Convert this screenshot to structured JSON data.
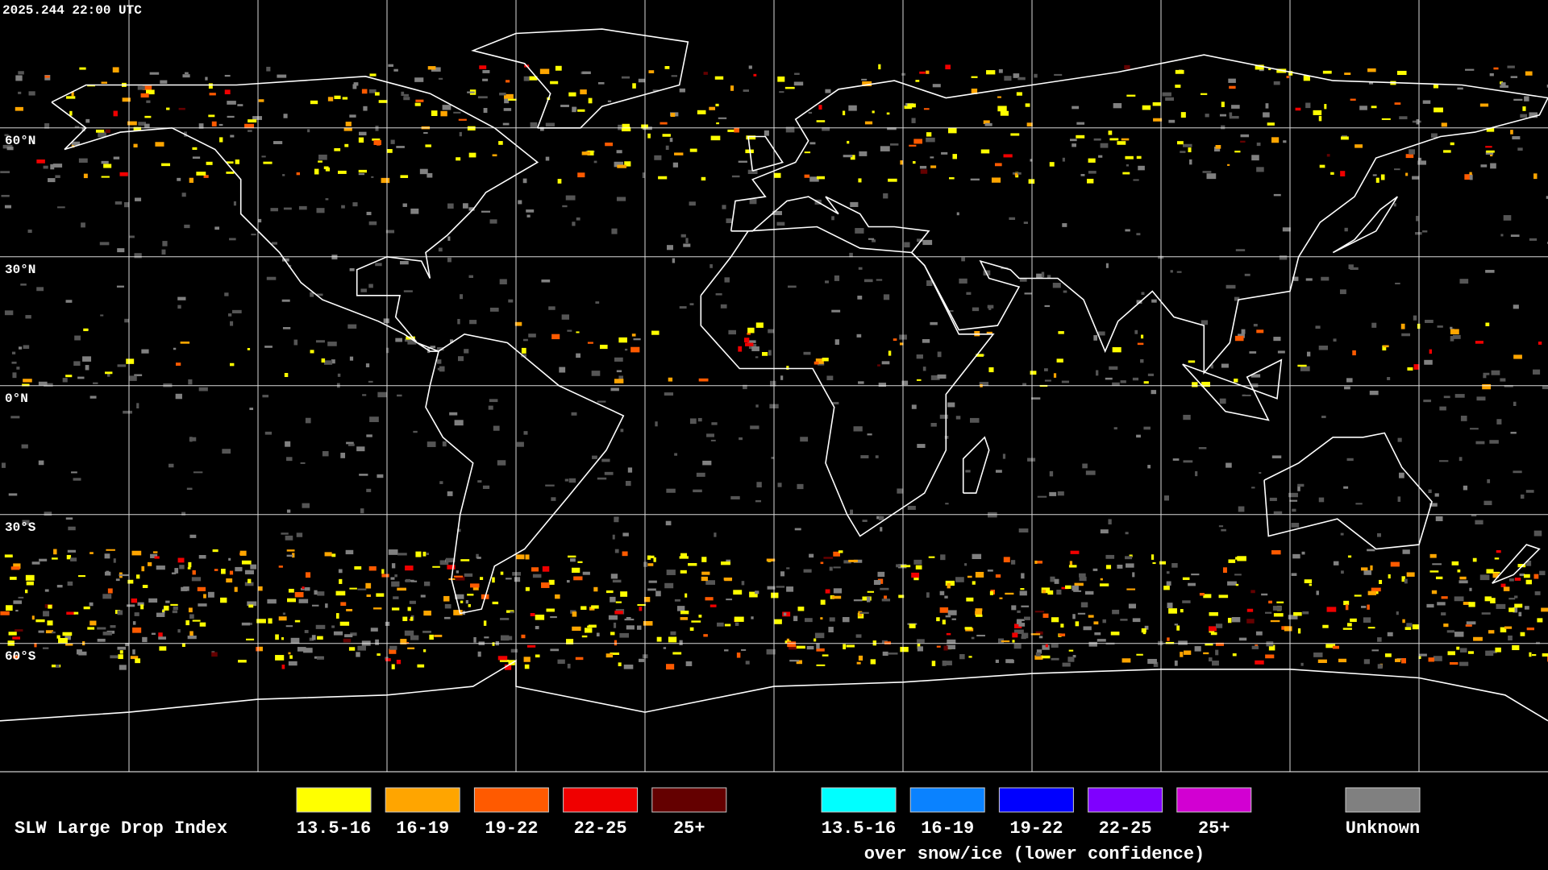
{
  "header": {
    "timestamp": "2025.244 22:00 UTC"
  },
  "map": {
    "latitude_labels": [
      "60°N",
      "30°N",
      "0°N",
      "30°S",
      "60°S"
    ]
  },
  "legend": {
    "title": "SLW Large Drop Index",
    "groups": [
      {
        "items": [
          {
            "label": "13.5-16",
            "color": "#ffff00"
          },
          {
            "label": "16-19",
            "color": "#ffa500"
          },
          {
            "label": "19-22",
            "color": "#ff5a00"
          },
          {
            "label": "22-25",
            "color": "#f00000"
          },
          {
            "label": "25+",
            "color": "#640000"
          }
        ]
      },
      {
        "items": [
          {
            "label": "13.5-16",
            "color": "#00ffff"
          },
          {
            "label": "16-19",
            "color": "#0a82ff"
          },
          {
            "label": "19-22",
            "color": "#0000ff"
          },
          {
            "label": "22-25",
            "color": "#7f00ff"
          },
          {
            "label": "25+",
            "color": "#d200d2"
          }
        ],
        "caption": "over snow/ice (lower confidence)"
      }
    ],
    "unknown": {
      "label": "Unknown",
      "color": "#808080"
    }
  }
}
